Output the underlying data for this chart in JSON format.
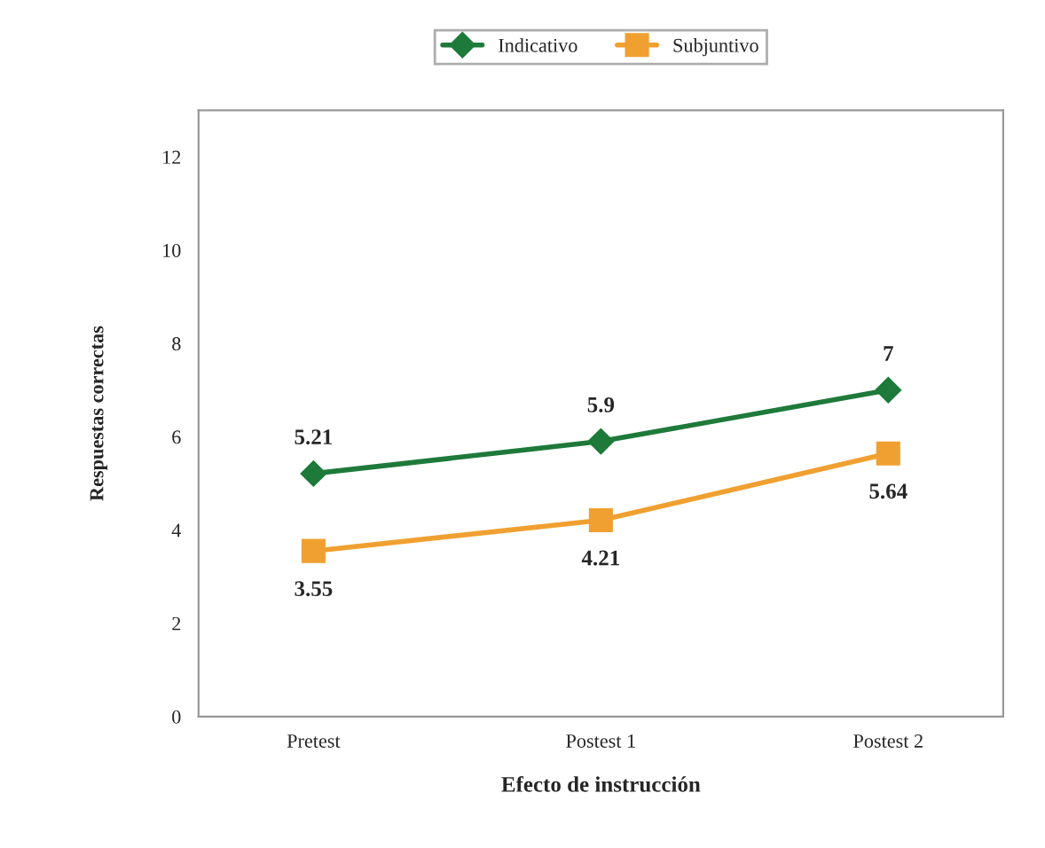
{
  "chart_data": {
    "type": "line",
    "xlabel": "Efecto de instrucción",
    "ylabel": "Respuestas correctas",
    "categories": [
      "Pretest",
      "Postest 1",
      "Postest 2"
    ],
    "series": [
      {
        "name": "Indicativo",
        "color": "#1e7a3a",
        "values": [
          5.21,
          5.9,
          7
        ],
        "marker": "diamond"
      },
      {
        "name": "Subjuntivo",
        "color": "#f0a030",
        "values": [
          3.55,
          4.21,
          5.64
        ],
        "marker": "square"
      }
    ],
    "ylim": [
      0,
      13
    ],
    "yticks": [
      0,
      2,
      4,
      6,
      8,
      10,
      12
    ],
    "grid": false,
    "legend": "top",
    "data_labels": true
  }
}
